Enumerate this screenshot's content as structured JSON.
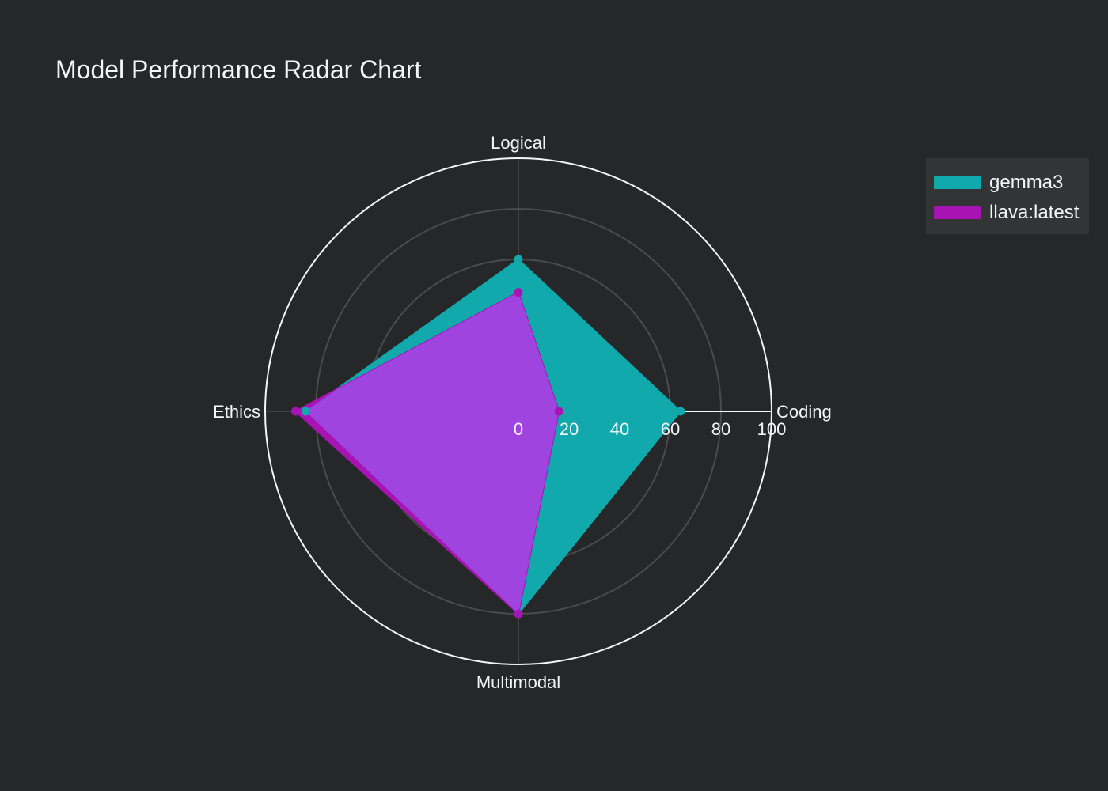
{
  "title": "Model Performance Radar Chart",
  "chart_data": {
    "type": "radar",
    "title": "Model Performance Radar Chart",
    "axes": [
      "Coding",
      "Logical",
      "Ethics",
      "Multimodal"
    ],
    "radial_range": [
      0,
      100
    ],
    "radial_ticks": [
      "0",
      "20",
      "40",
      "60",
      "80",
      "100"
    ],
    "series": [
      {
        "name": "gemma3",
        "values": [
          64,
          60,
          84,
          80
        ],
        "color": "#11a9ab"
      },
      {
        "name": "llava:latest",
        "values": [
          16,
          47,
          88,
          80
        ],
        "color": "#a814b3"
      }
    ],
    "overlap_color": "#a044e0",
    "background_color": "#262729",
    "grid": true,
    "legend_position": "top-right"
  }
}
